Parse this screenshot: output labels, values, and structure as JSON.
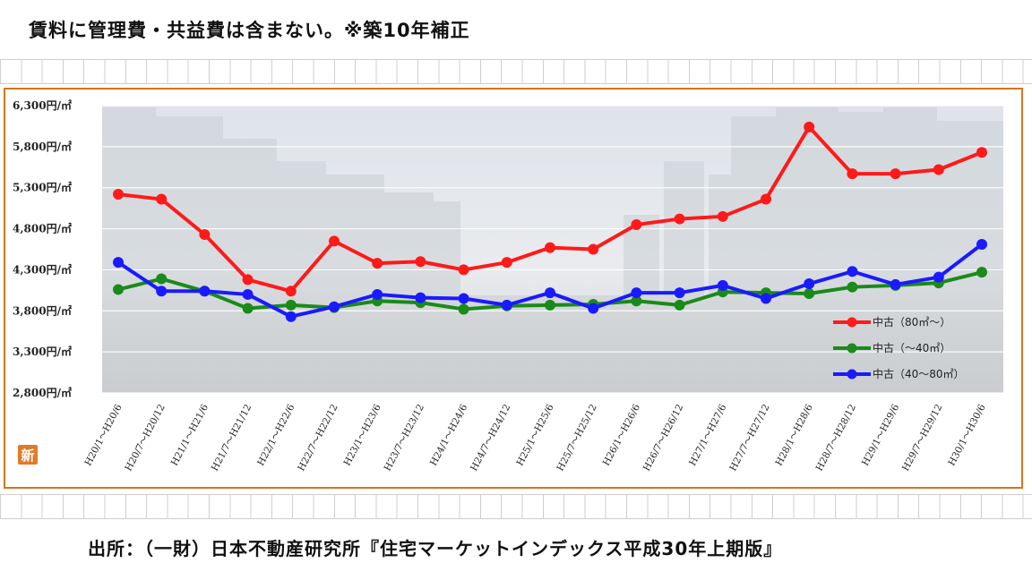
{
  "header": {
    "title": "賃料に管理費・共益費は含まない。※築10年補正"
  },
  "footer": {
    "source": "出所：（一財）日本不動産研究所『住宅マーケットインデックス平成30年上期版』"
  },
  "logo": {
    "glyph": "新",
    "color": "#e07b2a"
  },
  "chart_data": {
    "type": "line",
    "unit": "円/㎡",
    "ylim": [
      2800,
      6300
    ],
    "yticks": [
      "6,300円/㎡",
      "5,800円/㎡",
      "5,300円/㎡",
      "4,800円/㎡",
      "4,300円/㎡",
      "3,800円/㎡",
      "3,300円/㎡",
      "2,800円/㎡"
    ],
    "ytick_values": [
      6300,
      5800,
      5300,
      4800,
      4300,
      3800,
      3300,
      2800
    ],
    "categories": [
      "H20/1～H20/6",
      "H20/7～H20/12",
      "H21/1～H21/6",
      "H21/7～H21/12",
      "H22/1～H22/6",
      "H22/7～H22/12",
      "H23/1～H23/6",
      "H23/7～H23/12",
      "H24/1～H24/6",
      "H24/7～H24/12",
      "H25/1～H25/6",
      "H25/7～H25/12",
      "H26/1～H26/6",
      "H26/7～H26/12",
      "H27/1～H27/6",
      "H27/7～H27/12",
      "H28/1～H28/6",
      "H28/7～H28/12",
      "H29/1～H29/6",
      "H29/7～H29/12",
      "H30/1～H30/6"
    ],
    "grid": true,
    "legend_position": "right",
    "series": [
      {
        "name": "中古（80㎡～）",
        "color": "#ff1a1a",
        "values": [
          5220,
          5160,
          4730,
          4180,
          4040,
          4650,
          4380,
          4400,
          4300,
          4390,
          4570,
          4550,
          4850,
          4920,
          4950,
          5160,
          6040,
          5470,
          5470,
          5520,
          5730
        ]
      },
      {
        "name": "中古（～40㎡）",
        "color": "#1a8a1a",
        "values": [
          4060,
          4190,
          4040,
          3830,
          3870,
          3840,
          3920,
          3900,
          3820,
          3860,
          3870,
          3880,
          3920,
          3870,
          4030,
          4020,
          4010,
          4090,
          4110,
          4140,
          4270
        ]
      },
      {
        "name": "中古（40～80㎡）",
        "color": "#1a1aff",
        "values": [
          4390,
          4040,
          4040,
          4000,
          3730,
          3850,
          4000,
          3960,
          3950,
          3870,
          4020,
          3830,
          4020,
          4020,
          4110,
          3950,
          4130,
          4280,
          4120,
          4210,
          4610
        ]
      }
    ]
  }
}
